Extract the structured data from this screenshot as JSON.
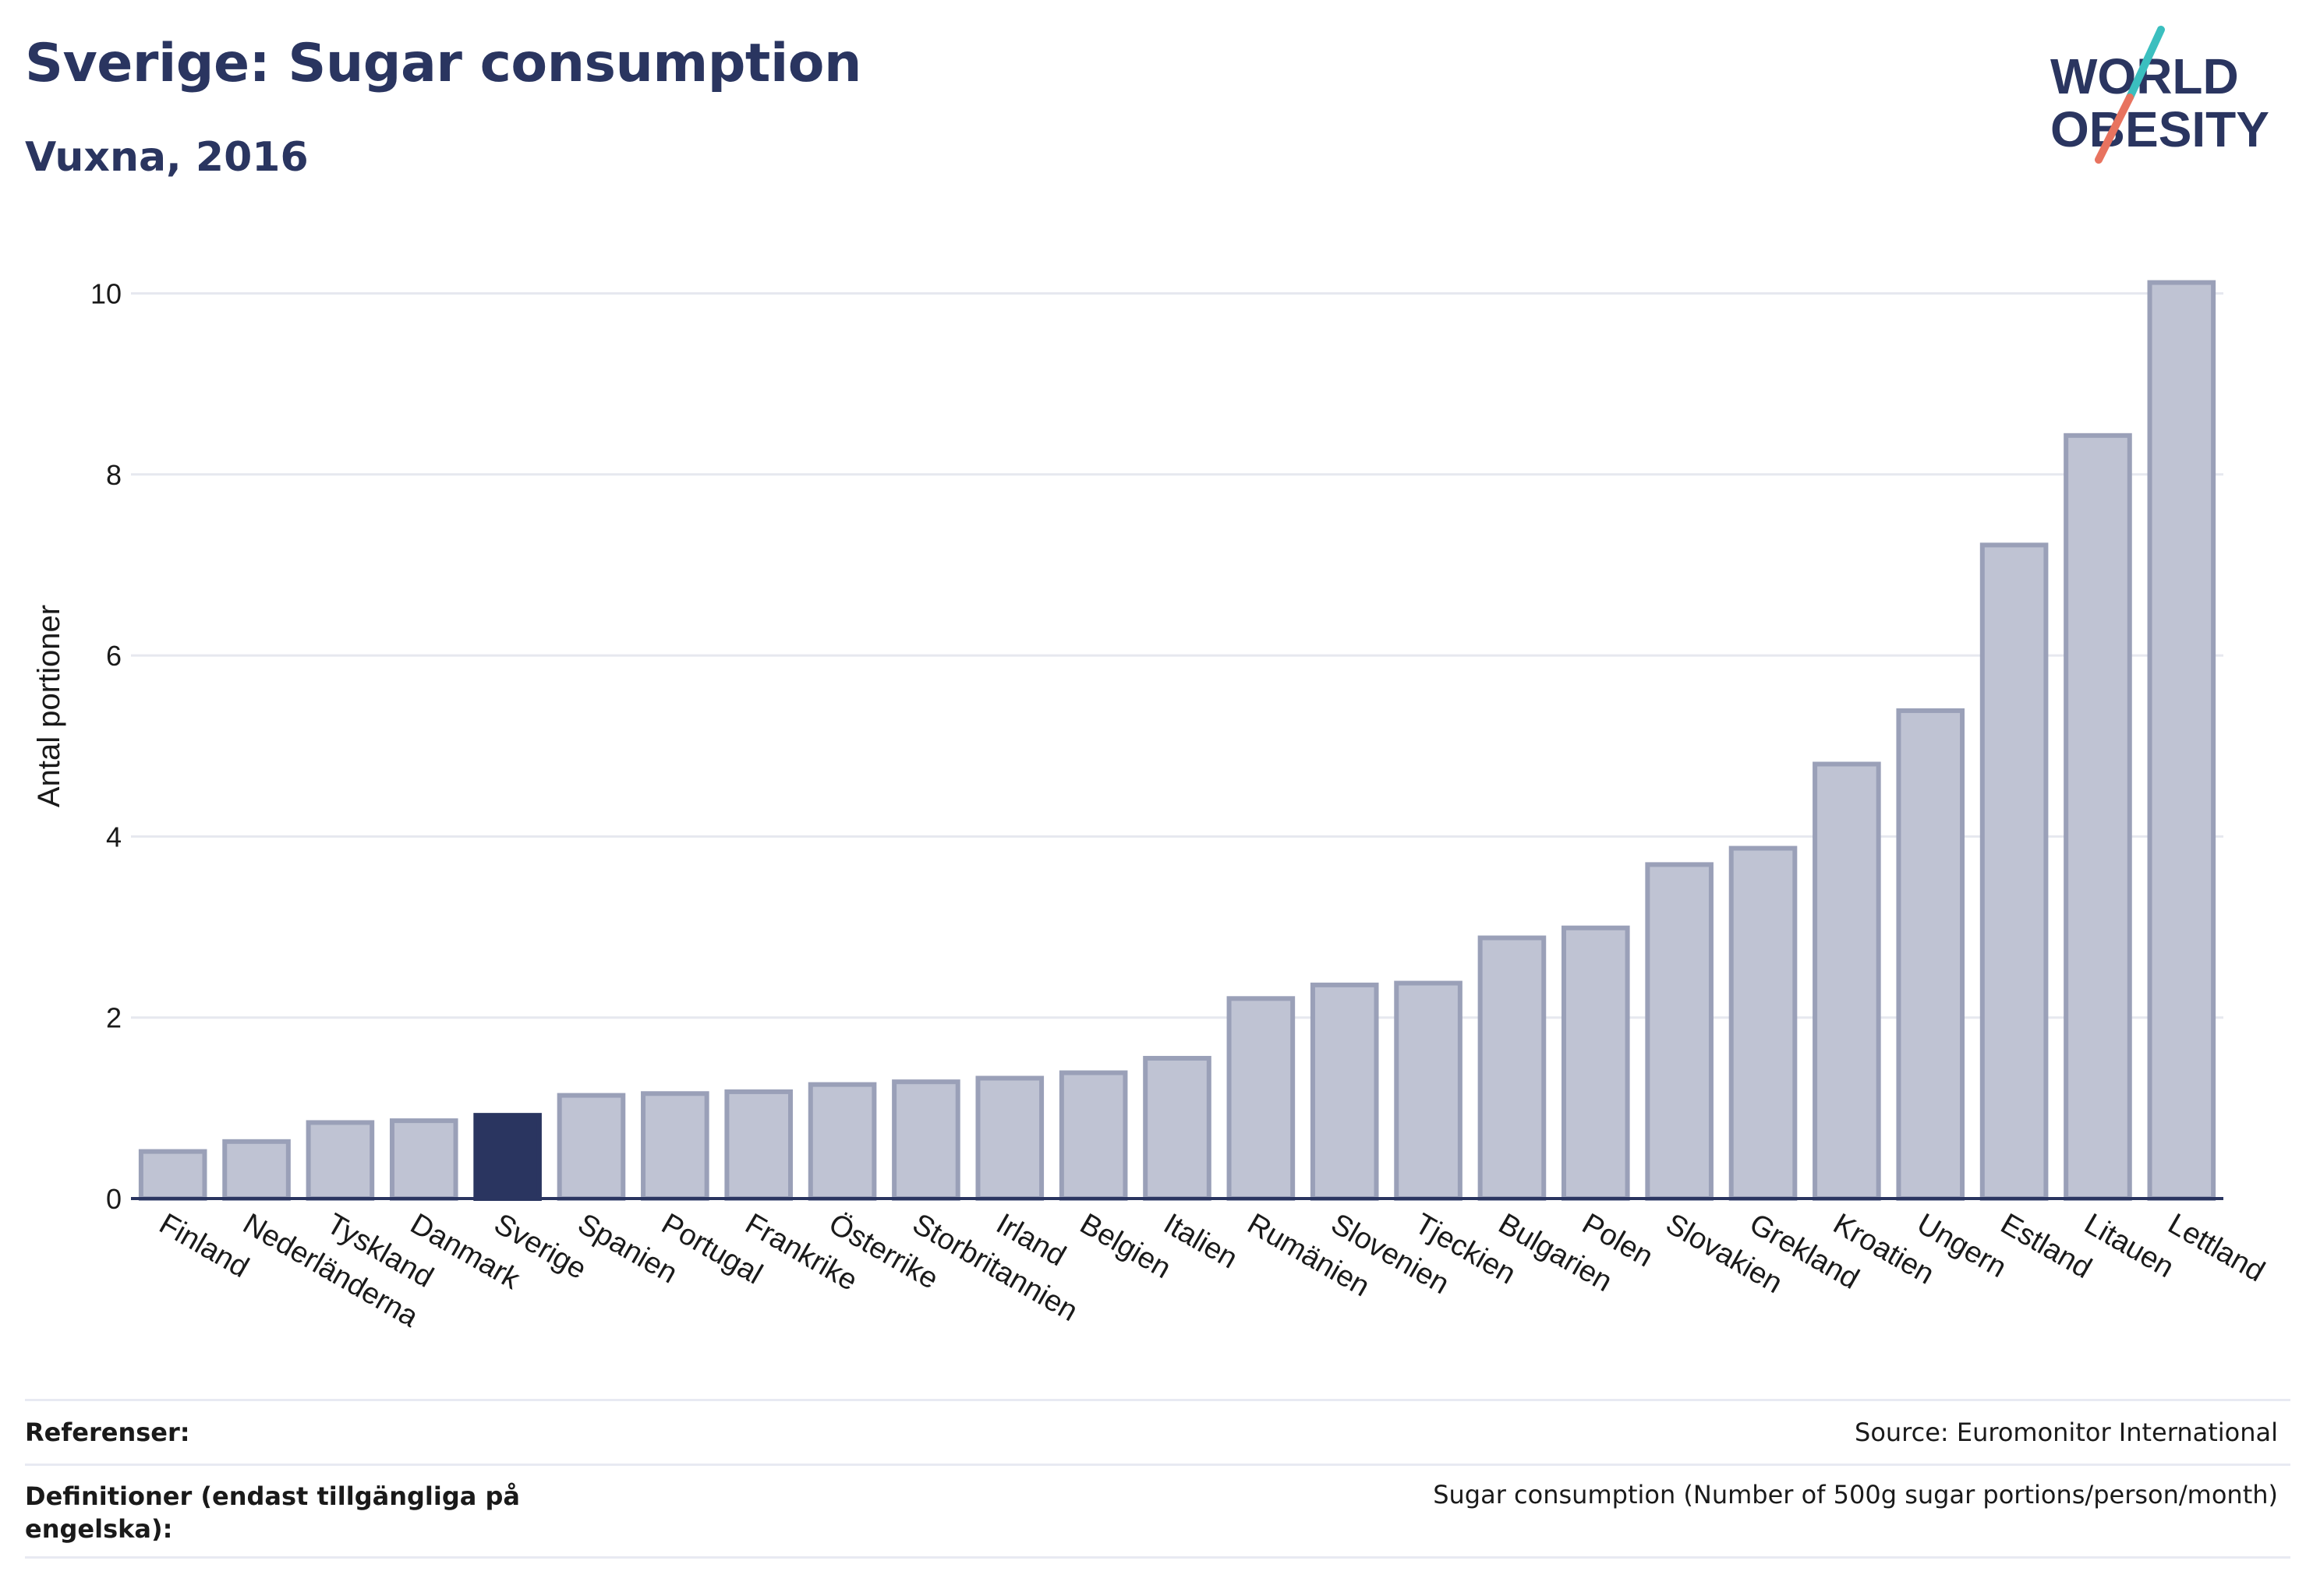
{
  "header": {
    "title": "Sverige: Sugar consumption",
    "subtitle": "Vuxna, 2016"
  },
  "logo": {
    "line1": "WORLD",
    "line2": "OBESITY",
    "accent_teal": "#3bbfbf",
    "accent_coral": "#e8735f"
  },
  "colors": {
    "highlight": "#2a3560",
    "bar_fill": "#bfc3d3",
    "bar_stroke": "#9aa0b8",
    "grid": "#e6e8ef",
    "axis": "#2a3560"
  },
  "chart_data": {
    "type": "bar",
    "ylabel": "Antal portioner",
    "ylim": [
      0,
      10.4
    ],
    "yticks": [
      0,
      2,
      4,
      6,
      8,
      10
    ],
    "grid": true,
    "highlight": "Sverige",
    "categories": [
      "Finland",
      "Nederländerna",
      "Tyskland",
      "Danmark",
      "Sverige",
      "Spanien",
      "Portugal",
      "Frankrike",
      "Österrike",
      "Storbritannien",
      "Irland",
      "Belgien",
      "Italien",
      "Rumänien",
      "Slovenien",
      "Tjeckien",
      "Bulgarien",
      "Polen",
      "Slovakien",
      "Grekland",
      "Kroatien",
      "Ungern",
      "Estland",
      "Litauen",
      "Lettland"
    ],
    "values": [
      0.52,
      0.63,
      0.84,
      0.86,
      0.92,
      1.14,
      1.16,
      1.18,
      1.26,
      1.29,
      1.33,
      1.39,
      1.55,
      2.21,
      2.36,
      2.38,
      2.88,
      2.99,
      3.69,
      3.87,
      4.8,
      5.39,
      7.22,
      8.43,
      10.12
    ]
  },
  "footer": {
    "references_label": "Referenser:",
    "references_value": "Source: Euromonitor International",
    "definitions_label": "Definitioner (endast tillgängliga på engelska):",
    "definitions_value": "Sugar consumption (Number of 500g sugar portions/person/month)"
  }
}
